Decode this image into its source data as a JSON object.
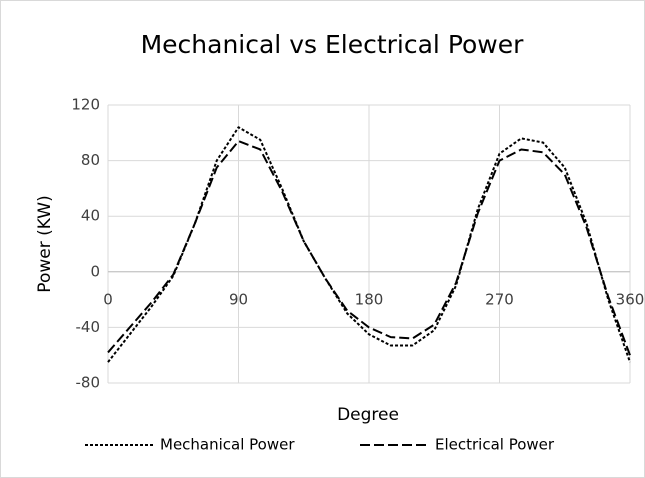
{
  "chart_data": {
    "type": "line",
    "title": "Mechanical vs Electrical Power",
    "xlabel": "Degree",
    "ylabel": "Power (KW)",
    "x": [
      0,
      15,
      30,
      45,
      60,
      75,
      90,
      105,
      120,
      135,
      150,
      165,
      180,
      195,
      210,
      225,
      240,
      255,
      270,
      285,
      300,
      315,
      330,
      345,
      360
    ],
    "series": [
      {
        "name": "Mechanical Power",
        "color": "#000000",
        "dash": "3,2",
        "values": [
          -65,
          -45,
          -25,
          -3,
          35,
          80,
          104,
          95,
          60,
          22,
          -5,
          -30,
          -45,
          -53,
          -53,
          -42,
          -10,
          45,
          85,
          96,
          93,
          75,
          35,
          -20,
          -65
        ]
      },
      {
        "name": "Electrical Power",
        "color": "#000000",
        "dash": "10,4",
        "values": [
          -58,
          -40,
          -22,
          -2,
          35,
          75,
          94,
          88,
          58,
          22,
          -5,
          -28,
          -40,
          -47,
          -48,
          -38,
          -8,
          42,
          80,
          88,
          86,
          70,
          32,
          -18,
          -60
        ]
      }
    ],
    "xlim": [
      0,
      360
    ],
    "xticks": [
      0,
      90,
      180,
      270,
      360
    ],
    "ylim": [
      -80,
      120
    ],
    "yticks": [
      -80,
      -40,
      0,
      40,
      80,
      120
    ],
    "grid": true,
    "legend": "bottom"
  }
}
